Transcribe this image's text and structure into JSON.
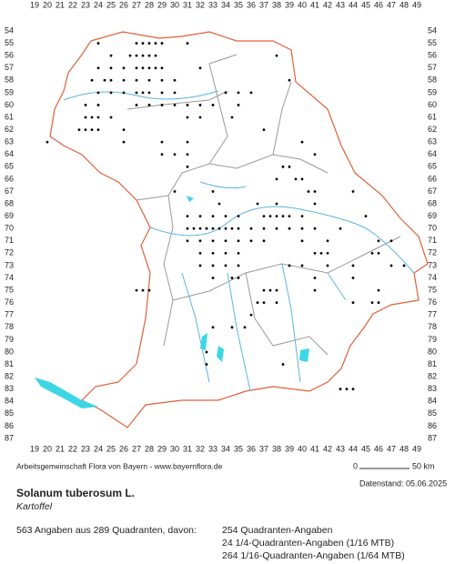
{
  "columns": [
    19,
    20,
    21,
    22,
    23,
    24,
    25,
    26,
    27,
    28,
    29,
    30,
    31,
    32,
    33,
    34,
    35,
    36,
    37,
    38,
    39,
    40,
    41,
    42,
    43,
    44,
    45,
    46,
    47,
    48,
    49
  ],
  "rows": [
    54,
    55,
    56,
    57,
    58,
    59,
    60,
    61,
    62,
    63,
    64,
    65,
    66,
    67,
    68,
    69,
    70,
    71,
    72,
    73,
    74,
    75,
    76,
    77,
    78,
    79,
    80,
    81,
    82,
    83,
    84,
    85,
    86,
    87
  ],
  "occurrences": [
    [
      24,
      55
    ],
    [
      27,
      55
    ],
    [
      27.5,
      55
    ],
    [
      28,
      55
    ],
    [
      28.5,
      55
    ],
    [
      29,
      55
    ],
    [
      31,
      55
    ],
    [
      25,
      56
    ],
    [
      26.5,
      56
    ],
    [
      27,
      56
    ],
    [
      27.5,
      56
    ],
    [
      28,
      56
    ],
    [
      28.5,
      56
    ],
    [
      38,
      56
    ],
    [
      24,
      57
    ],
    [
      25,
      57
    ],
    [
      26,
      57
    ],
    [
      27,
      57
    ],
    [
      27.5,
      57
    ],
    [
      28,
      57
    ],
    [
      28.5,
      57
    ],
    [
      29,
      57
    ],
    [
      32,
      57
    ],
    [
      23.5,
      58
    ],
    [
      24.5,
      58
    ],
    [
      25,
      58
    ],
    [
      26,
      58
    ],
    [
      27,
      58
    ],
    [
      28,
      58
    ],
    [
      29,
      58
    ],
    [
      30,
      58
    ],
    [
      39,
      58
    ],
    [
      24,
      59
    ],
    [
      25,
      59
    ],
    [
      26,
      59
    ],
    [
      27,
      59
    ],
    [
      27.5,
      59
    ],
    [
      28,
      59
    ],
    [
      29,
      59
    ],
    [
      30,
      59
    ],
    [
      34,
      59
    ],
    [
      35,
      59
    ],
    [
      36,
      59
    ],
    [
      23,
      60
    ],
    [
      24,
      60
    ],
    [
      27,
      60
    ],
    [
      28,
      60
    ],
    [
      29,
      60
    ],
    [
      30,
      60
    ],
    [
      31,
      60
    ],
    [
      32,
      60
    ],
    [
      33,
      60
    ],
    [
      35,
      60
    ],
    [
      23,
      61
    ],
    [
      23.5,
      61
    ],
    [
      24,
      61
    ],
    [
      25,
      61
    ],
    [
      31,
      61
    ],
    [
      32,
      61
    ],
    [
      34.5,
      61
    ],
    [
      22.5,
      62
    ],
    [
      23,
      62
    ],
    [
      23.5,
      62
    ],
    [
      24,
      62
    ],
    [
      26,
      62
    ],
    [
      37,
      62
    ],
    [
      20,
      63
    ],
    [
      26,
      63
    ],
    [
      29,
      63
    ],
    [
      31,
      63
    ],
    [
      40,
      63
    ],
    [
      29,
      64
    ],
    [
      30,
      64
    ],
    [
      31,
      64
    ],
    [
      41,
      64
    ],
    [
      31,
      65
    ],
    [
      38.5,
      65
    ],
    [
      39,
      65
    ],
    [
      38,
      66
    ],
    [
      39.5,
      66
    ],
    [
      40,
      66
    ],
    [
      30,
      67
    ],
    [
      33,
      67
    ],
    [
      40.5,
      67
    ],
    [
      41,
      67
    ],
    [
      44,
      67
    ],
    [
      33.5,
      68
    ],
    [
      36.5,
      68
    ],
    [
      38,
      68
    ],
    [
      41,
      68
    ],
    [
      31,
      69
    ],
    [
      32,
      69
    ],
    [
      33,
      69
    ],
    [
      34,
      69
    ],
    [
      35,
      69
    ],
    [
      37,
      69
    ],
    [
      37.5,
      69
    ],
    [
      38,
      69
    ],
    [
      38.5,
      69
    ],
    [
      39,
      69
    ],
    [
      40,
      69
    ],
    [
      45,
      69
    ],
    [
      31,
      70
    ],
    [
      31.5,
      70
    ],
    [
      32,
      70
    ],
    [
      32.5,
      70
    ],
    [
      33,
      70
    ],
    [
      33.5,
      70
    ],
    [
      34,
      70
    ],
    [
      34.5,
      70
    ],
    [
      35,
      70
    ],
    [
      36,
      70
    ],
    [
      37,
      70
    ],
    [
      38,
      70
    ],
    [
      39,
      70
    ],
    [
      40,
      70
    ],
    [
      41,
      70
    ],
    [
      43,
      70
    ],
    [
      31,
      71
    ],
    [
      32,
      71
    ],
    [
      33,
      71
    ],
    [
      34,
      71
    ],
    [
      35,
      71
    ],
    [
      36,
      71
    ],
    [
      37,
      71
    ],
    [
      40,
      71
    ],
    [
      42,
      71
    ],
    [
      46,
      71
    ],
    [
      47,
      71
    ],
    [
      32,
      72
    ],
    [
      33,
      72
    ],
    [
      34,
      72
    ],
    [
      35,
      72
    ],
    [
      41,
      72
    ],
    [
      41.5,
      72
    ],
    [
      42,
      72
    ],
    [
      45.5,
      72
    ],
    [
      46,
      72
    ],
    [
      32,
      73
    ],
    [
      33,
      73
    ],
    [
      34,
      73
    ],
    [
      35,
      73
    ],
    [
      39,
      73
    ],
    [
      40,
      73
    ],
    [
      42,
      73
    ],
    [
      44,
      73
    ],
    [
      47,
      73
    ],
    [
      48,
      73
    ],
    [
      33,
      74
    ],
    [
      34.5,
      74
    ],
    [
      35,
      74
    ],
    [
      41,
      74
    ],
    [
      44,
      74
    ],
    [
      27,
      75
    ],
    [
      27.5,
      75
    ],
    [
      28,
      75
    ],
    [
      37,
      75
    ],
    [
      37.5,
      75
    ],
    [
      38,
      75
    ],
    [
      41,
      75
    ],
    [
      46,
      75
    ],
    [
      36.5,
      76
    ],
    [
      37,
      76
    ],
    [
      38,
      76
    ],
    [
      44,
      76
    ],
    [
      45.5,
      76
    ],
    [
      46,
      76
    ],
    [
      36,
      77
    ],
    [
      33,
      78
    ],
    [
      34.5,
      78
    ],
    [
      35.5,
      78
    ],
    [
      32.5,
      80
    ],
    [
      32.5,
      81
    ],
    [
      38.5,
      81
    ],
    [
      43,
      83
    ],
    [
      43.5,
      83
    ],
    [
      44,
      83
    ]
  ],
  "footer": {
    "credit": "Arbeitsgemeinschaft Flora von Bayern - www.bayernflora.de",
    "scale_start": "0",
    "scale_end": "50 km",
    "date": "Datenstand: 05.06.2025"
  },
  "species": {
    "name": "Solanum tuberosum L.",
    "common_name": "Kartoffel"
  },
  "stats": {
    "summary": "563 Angaben aus 289 Quadranten, davon:",
    "lines": [
      "254 Quadranten-Angaben",
      "24 1/4-Quadranten-Angaben (1/16 MTB)",
      "264 1/16-Quadranten-Angaben (1/64 MTB)"
    ]
  }
}
